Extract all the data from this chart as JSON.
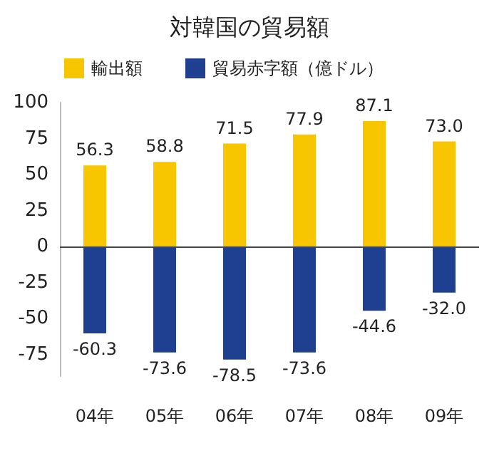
{
  "chart_data": {
    "type": "bar",
    "title": "対韓国の貿易額",
    "categories": [
      "04年",
      "05年",
      "06年",
      "07年",
      "08年",
      "09年"
    ],
    "series": [
      {
        "name": "輸出額",
        "color": "#f7c600",
        "values": [
          56.3,
          58.8,
          71.5,
          77.9,
          87.1,
          73.0
        ],
        "value_labels": [
          "56.3",
          "58.8",
          "71.5",
          "77.9",
          "87.1",
          "73.0"
        ]
      },
      {
        "name": "貿易赤字額（億ドル）",
        "color": "#1f3f91",
        "values": [
          -60.3,
          -73.6,
          -78.5,
          -73.6,
          -44.6,
          -32.0
        ],
        "value_labels": [
          "-60.3",
          "-73.6",
          "-78.5",
          "-73.6",
          "-44.6",
          "-32.0"
        ]
      }
    ],
    "stacked": true,
    "ref_lines": [
      {
        "axis": "y",
        "value": 0,
        "color": "#444444"
      }
    ],
    "ylim": [
      -90,
      100
    ],
    "yticks": [
      -75,
      -50,
      -25,
      0,
      25,
      50,
      75,
      100
    ],
    "grid": false,
    "legend": "top left"
  }
}
